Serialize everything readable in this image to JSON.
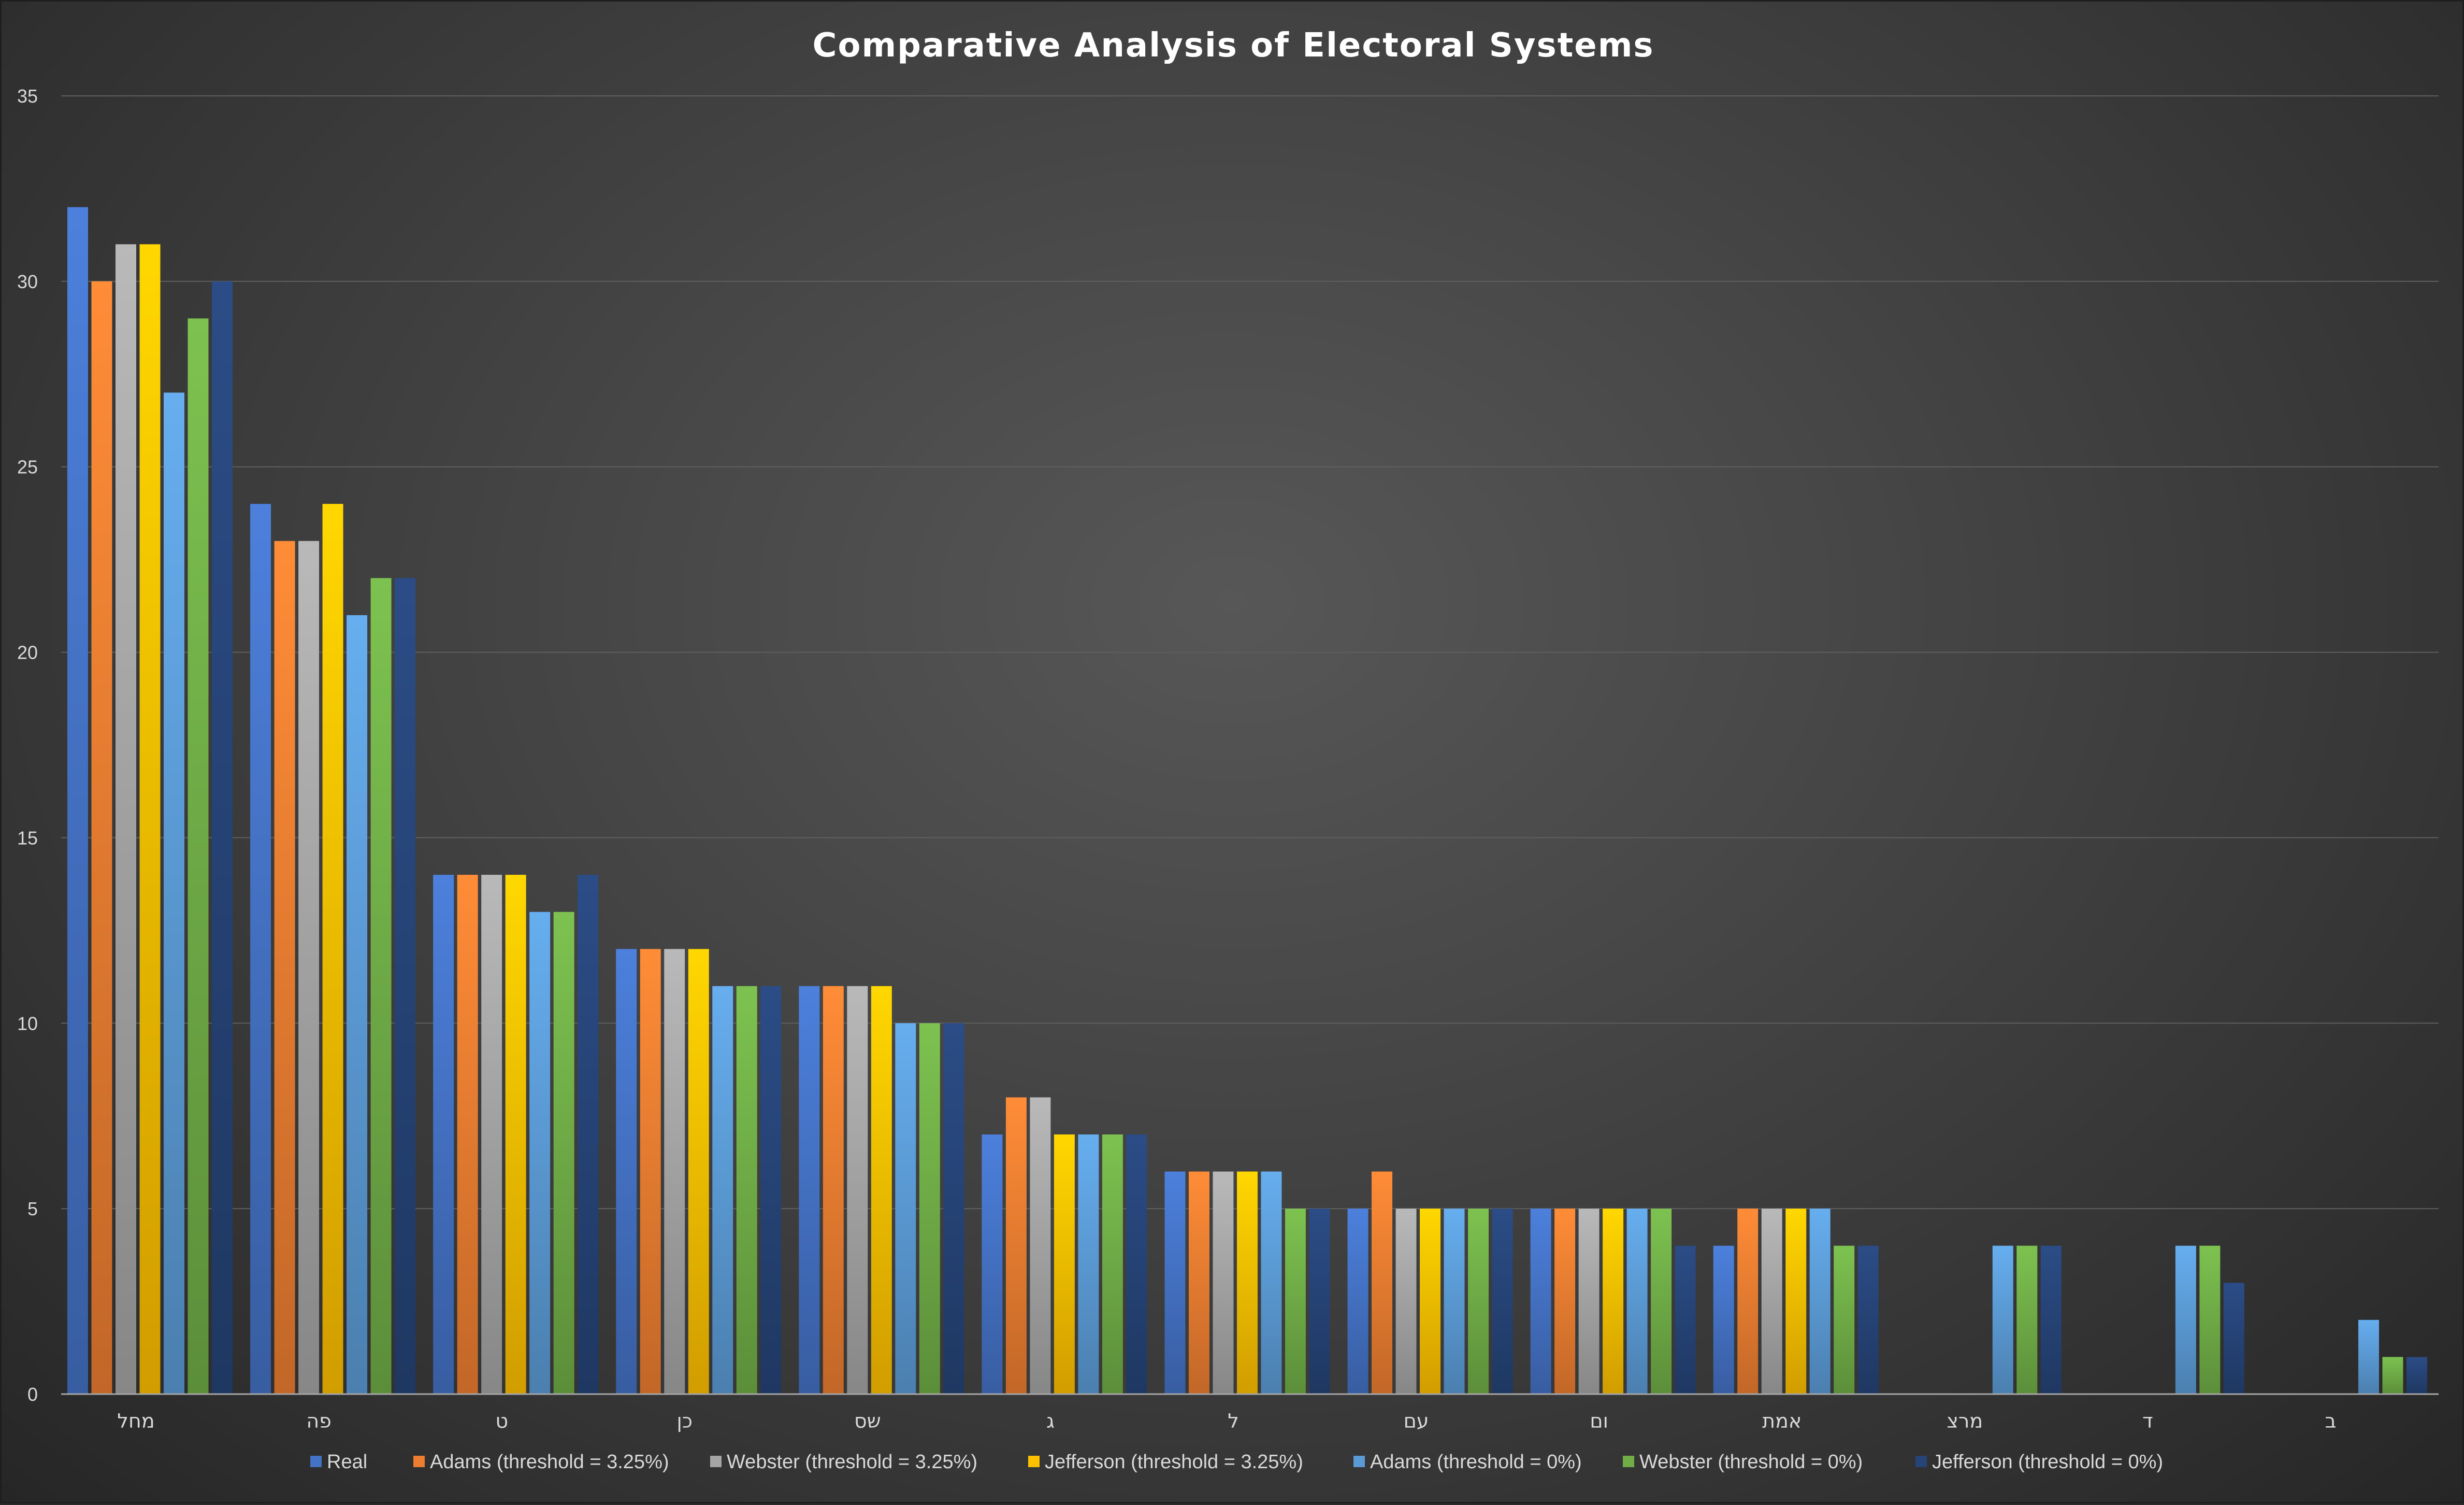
{
  "chart_data": {
    "type": "bar",
    "title": "Comparative Analysis of Electoral Systems",
    "xlabel": "",
    "ylabel": "",
    "ylim": [
      0,
      35
    ],
    "yticks": [
      0,
      5,
      10,
      15,
      20,
      25,
      30,
      35
    ],
    "grid": true,
    "legend_position": "bottom",
    "categories": [
      "מחל",
      "פה",
      "ט",
      "כן",
      "שס",
      "ג",
      "ל",
      "עם",
      "ום",
      "אמת",
      "מרצ",
      "ד",
      "ב"
    ],
    "series": [
      {
        "name": "Real",
        "color": "#4472c4",
        "values": [
          32,
          24,
          14,
          12,
          11,
          7,
          6,
          5,
          5,
          4,
          null,
          null,
          null
        ]
      },
      {
        "name": "Adams (threshold = 3.25%)",
        "color": "#ed7d31",
        "values": [
          30,
          23,
          14,
          12,
          11,
          8,
          6,
          6,
          5,
          5,
          null,
          null,
          null
        ]
      },
      {
        "name": "Webster (threshold = 3.25%)",
        "color": "#a5a5a5",
        "values": [
          31,
          23,
          14,
          12,
          11,
          8,
          6,
          5,
          5,
          5,
          null,
          null,
          null
        ]
      },
      {
        "name": "Jefferson (threshold = 3.25%)",
        "color": "#ffc000",
        "values": [
          31,
          24,
          14,
          12,
          11,
          7,
          6,
          5,
          5,
          5,
          null,
          null,
          null
        ]
      },
      {
        "name": "Adams (threshold = 0%)",
        "color": "#5b9bd5",
        "values": [
          27,
          21,
          13,
          11,
          10,
          7,
          6,
          5,
          5,
          5,
          4,
          4,
          2
        ]
      },
      {
        "name": "Webster (threshold = 0%)",
        "color": "#70ad47",
        "values": [
          29,
          22,
          13,
          11,
          10,
          7,
          5,
          5,
          5,
          4,
          4,
          4,
          1
        ]
      },
      {
        "name": "Jefferson (threshold = 0%)",
        "color": "#264478",
        "values": [
          30,
          22,
          14,
          11,
          10,
          7,
          5,
          5,
          4,
          4,
          4,
          3,
          1
        ]
      }
    ]
  }
}
